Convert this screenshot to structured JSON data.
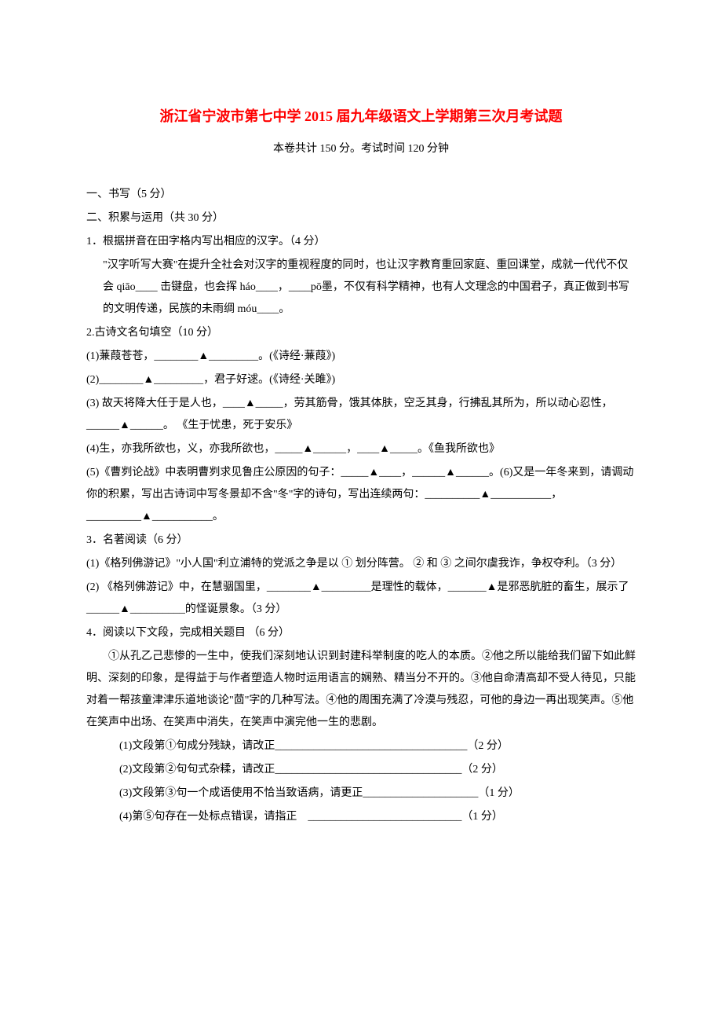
{
  "title": "浙江省宁波市第七中学 2015 届九年级语文上学期第三次月考试题",
  "subtitle": "本卷共计 150 分。考试时间 120 分钟",
  "section1": "一、书写（5 分）",
  "section2": "二、积累与运用（共 30 分）",
  "q1": {
    "stem": "1．根据拼音在田字格内写出相应的汉字。（4 分）",
    "body": "\"汉字听写大赛\"在提升全社会对汉字的重视程度的同时，也让汉字教育重回家庭、重回课堂，成就一代代不仅会 qiāo____ 击键盘，也会挥 háo____，____pō墨，不仅有科学精神，也有人文理念的中国君子，真正做到书写的文明传递，民族的未雨绸 móu____。"
  },
  "q2": {
    "stem": "2.古诗文名句填空（10 分）",
    "item1": "(1)蒹葭苍苍，________▲_________。(《诗经·蒹葭》)",
    "item2": "(2)________▲_________，君子好逑。(《诗经·关雎》)",
    "item3": "(3) 故天将降大任于是人也，____▲_____，劳其筋骨，饿其体肤，空乏其身，行拂乱其所为，所以动心忍性，______▲______。 《生于忧患，死于安乐》",
    "item4": "(4)生，亦我所欲也，义，亦我所欲也，_____▲______，____▲_____。《鱼我所欲也》",
    "item5": "(5)《曹刿论战》中表明曹刿求见鲁庄公原因的句子：_____▲____，______▲______。(6)又是一年冬来到，请调动你的积累，写出古诗词中写冬景却不含\"冬\"字的诗句，写出连续两句：__________▲___________，__________▲___________。"
  },
  "q3": {
    "stem": "3．名著阅读（6 分）",
    "item1": "(1)《格列佛游记》\"小人国\"利立浦特的党派之争是以   ①    划分阵营。      ②    和      ③       之间尔虞我诈，争权夺利。（3 分）",
    "item2": "(2) 《格列佛游记》中，在慧骃国里，________▲_________是理性的载体，_______▲是邪恶肮脏的畜生，展示了______▲__________的怪诞景象。（3 分）"
  },
  "q4": {
    "stem": "4．阅读以下文段，完成相关题目 （6 分）",
    "body": "①从孔乙己悲惨的一生中，使我们深刻地认识到封建科举制度的吃人的本质。②他之所以能给我们留下如此鲜明、深刻的印象，是得益于与作者塑造人物时运用语言的娴熟、精当分不开的。③他自命清高却不受人待见，只能对着一帮孩童津津乐道地谈论\"茴\"字的几种写法。④他的周围充满了冷漠与残忍，可他的身边一再出现笑声。⑤他在笑声中出场、在笑声中消失，在笑声中演完他一生的悲剧。",
    "sub1": "(1)文段第①句成分残缺，请改正___________________________________（2 分）",
    "sub2": "(2)文段第②句句式杂糅，请改正__________________________________（2 分）",
    "sub3": "(3)文段第③句一个成语使用不恰当致语病，请更正_____________________（1 分）",
    "sub4": "(4)第⑤句存在一处标点错误，请指正　____________________________（1 分）"
  },
  "colors": {
    "title_color": "#ff0000",
    "text_color": "#000000",
    "background_color": "#ffffff"
  },
  "typography": {
    "title_fontsize": 18,
    "body_fontsize": 14,
    "line_height": 2.0,
    "font_family": "SimSun"
  }
}
